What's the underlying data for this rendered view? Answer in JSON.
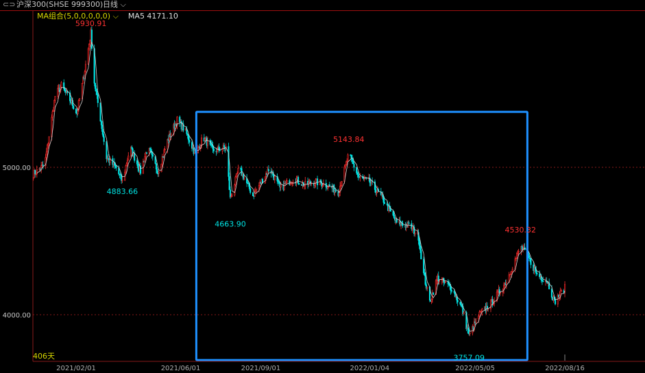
{
  "header": {
    "link_icon": "link-icon",
    "title": "沪深300(SHSE  999300)",
    "period": "日线",
    "period_icon": "chevron-down-icon"
  },
  "legend": {
    "ma_group": "MA组合(5,0,0,0,0,0)",
    "ma5": "MA5 4171.10"
  },
  "day_count": "406天",
  "colors": {
    "up": "#ff3232",
    "down": "#00e4e4",
    "ma5": "#d0d0d0",
    "grid": "#8a1a1a",
    "box": "#1e90ff"
  },
  "chart_data": {
    "type": "candlestick",
    "ylim": [
      3684,
      6065
    ],
    "y_ticks": [
      {
        "value": 5000,
        "label": "5000.00"
      },
      {
        "value": 4000,
        "label": "4000.00"
      }
    ],
    "x_ticks": [
      "2021/02/01",
      "2021/06/01",
      "2021/09/01",
      "2022/01/04",
      "2022/05/05",
      "2022/08/16"
    ],
    "grid": "horizontal dashed at y ticks",
    "close_path": [
      [
        "2020-12-13",
        4949
      ],
      [
        "2020-12-27",
        5019
      ],
      [
        "2021-01-08",
        5484
      ],
      [
        "2021-01-15",
        5553
      ],
      [
        "2021-01-27",
        5437
      ],
      [
        "2021-02-02",
        5367
      ],
      [
        "2021-02-10",
        5623
      ],
      [
        "2021-02-18",
        5912
      ],
      [
        "2021-02-22",
        5577
      ],
      [
        "2021-02-28",
        5367
      ],
      [
        "2021-03-08",
        5065
      ],
      [
        "2021-03-19",
        4995
      ],
      [
        "2021-03-26",
        4902
      ],
      [
        "2021-04-04",
        5135
      ],
      [
        "2021-04-16",
        4972
      ],
      [
        "2021-04-24",
        5135
      ],
      [
        "2021-05-06",
        4972
      ],
      [
        "2021-05-17",
        5181
      ],
      [
        "2021-05-28",
        5321
      ],
      [
        "2021-06-06",
        5251
      ],
      [
        "2021-06-18",
        5088
      ],
      [
        "2021-06-27",
        5205
      ],
      [
        "2021-07-08",
        5112
      ],
      [
        "2021-07-23",
        5135
      ],
      [
        "2021-07-28",
        4786
      ],
      [
        "2021-08-07",
        4995
      ],
      [
        "2021-08-23",
        4809
      ],
      [
        "2021-09-11",
        4995
      ],
      [
        "2021-09-23",
        4856
      ],
      [
        "2021-10-09",
        4926
      ],
      [
        "2021-10-21",
        4879
      ],
      [
        "2021-11-02",
        4902
      ],
      [
        "2021-11-17",
        4879
      ],
      [
        "2021-11-29",
        4833
      ],
      [
        "2021-12-11",
        5088
      ],
      [
        "2021-12-23",
        4926
      ],
      [
        "2022-01-04",
        4902
      ],
      [
        "2022-01-19",
        4786
      ],
      [
        "2022-02-04",
        4623
      ],
      [
        "2022-02-20",
        4600
      ],
      [
        "2022-03-01",
        4530
      ],
      [
        "2022-03-07",
        4274
      ],
      [
        "2022-03-14",
        4088
      ],
      [
        "2022-03-23",
        4251
      ],
      [
        "2022-04-08",
        4181
      ],
      [
        "2022-04-20",
        4042
      ],
      [
        "2022-04-28",
        3856
      ],
      [
        "2022-05-09",
        3995
      ],
      [
        "2022-05-25",
        4088
      ],
      [
        "2022-06-10",
        4228
      ],
      [
        "2022-06-26",
        4460
      ],
      [
        "2022-07-03",
        4414
      ],
      [
        "2022-07-15",
        4274
      ],
      [
        "2022-07-27",
        4228
      ],
      [
        "2022-08-04",
        4088
      ],
      [
        "2022-08-16",
        4181
      ]
    ],
    "annotations": [
      {
        "label": "5930.91",
        "date": "2021-02-18",
        "price": 5930.91,
        "kind": "high"
      },
      {
        "label": "4883.66",
        "date": "2021-03-26",
        "price": 4883.66,
        "kind": "low"
      },
      {
        "label": "4663.90",
        "date": "2021-07-28",
        "price": 4663.9,
        "kind": "low"
      },
      {
        "label": "5143.84",
        "date": "2021-12-11",
        "price": 5143.84,
        "kind": "high"
      },
      {
        "label": "4530.32",
        "date": "2022-06-26",
        "price": 4530.32,
        "kind": "high"
      },
      {
        "label": "3757.09",
        "date": "2022-04-28",
        "price": 3757.09,
        "kind": "low"
      }
    ],
    "highlight_box": {
      "from": "2021-06-19",
      "to": "2022-07-04",
      "price_top": 5376,
      "price_bottom": 3693
    }
  }
}
